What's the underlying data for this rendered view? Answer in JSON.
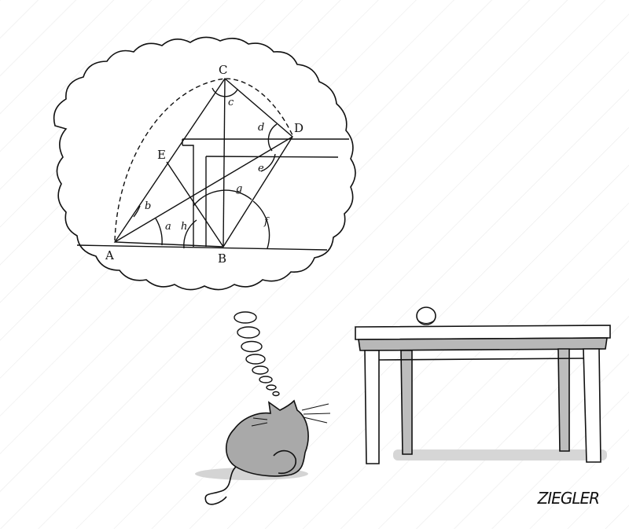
{
  "cartoon": {
    "points": {
      "A": "A",
      "B": "B",
      "C": "C",
      "D": "D",
      "E": "E"
    },
    "angles": {
      "a": "a",
      "b": "b",
      "c": "c",
      "d": "d",
      "e": "e",
      "f": "f",
      "g": "g",
      "h": "h"
    },
    "signature": "ZIEGLER"
  }
}
